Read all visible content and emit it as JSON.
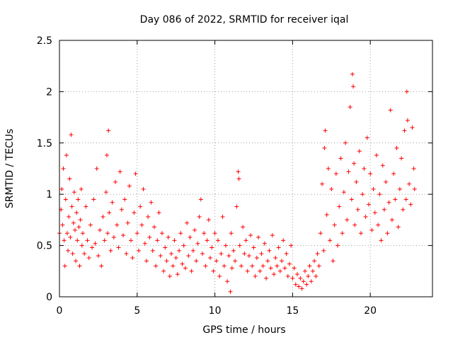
{
  "chart_data": {
    "type": "scatter",
    "title": "Day 086 of 2022, SRMTID for receiver iqal",
    "xlabel": "GPS time / hours",
    "ylabel": "SRMTID / TECUs",
    "xlim": [
      0,
      24
    ],
    "ylim": [
      0,
      2.5
    ],
    "x_ticks": [
      0,
      5,
      10,
      15,
      20
    ],
    "x_tick_labels": [
      "0",
      "5",
      "10",
      "15",
      "20"
    ],
    "y_ticks": [
      0,
      0.5,
      1,
      1.5,
      2,
      2.5
    ],
    "y_tick_labels": [
      "0",
      "0.5",
      "1",
      "1.5",
      "2",
      "2.5"
    ],
    "grid": true,
    "marker": "+",
    "color": "#ff0000",
    "series": [
      {
        "name": "SRMTID",
        "points": [
          [
            0.0,
            0.62
          ],
          [
            0.1,
            0.85
          ],
          [
            0.15,
            1.05
          ],
          [
            0.2,
            0.7
          ],
          [
            0.25,
            1.25
          ],
          [
            0.3,
            0.55
          ],
          [
            0.35,
            0.3
          ],
          [
            0.4,
            0.95
          ],
          [
            0.45,
            1.38
          ],
          [
            0.5,
            0.62
          ],
          [
            0.55,
            0.45
          ],
          [
            0.6,
            0.78
          ],
          [
            0.65,
            1.15
          ],
          [
            0.7,
            0.58
          ],
          [
            0.75,
            1.58
          ],
          [
            0.8,
            0.88
          ],
          [
            0.85,
            0.42
          ],
          [
            0.9,
            0.72
          ],
          [
            0.95,
            1.02
          ],
          [
            1.0,
            0.65
          ],
          [
            1.05,
            0.35
          ],
          [
            1.1,
            0.82
          ],
          [
            1.15,
            0.55
          ],
          [
            1.2,
            0.95
          ],
          [
            1.25,
            0.68
          ],
          [
            1.3,
            0.3
          ],
          [
            1.35,
            0.75
          ],
          [
            1.4,
            1.05
          ],
          [
            1.45,
            0.5
          ],
          [
            1.5,
            0.62
          ],
          [
            1.6,
            0.42
          ],
          [
            1.7,
            0.88
          ],
          [
            1.8,
            0.55
          ],
          [
            1.9,
            0.38
          ],
          [
            2.0,
            0.7
          ],
          [
            2.1,
            0.48
          ],
          [
            2.2,
            0.95
          ],
          [
            2.3,
            0.52
          ],
          [
            2.4,
            1.25
          ],
          [
            2.5,
            0.4
          ],
          [
            2.6,
            0.65
          ],
          [
            2.7,
            0.3
          ],
          [
            2.8,
            0.78
          ],
          [
            2.9,
            0.55
          ],
          [
            3.0,
            1.02
          ],
          [
            3.05,
            1.38
          ],
          [
            3.1,
            0.62
          ],
          [
            3.15,
            1.62
          ],
          [
            3.2,
            0.82
          ],
          [
            3.3,
            0.45
          ],
          [
            3.4,
            0.92
          ],
          [
            3.5,
            0.58
          ],
          [
            3.6,
            1.12
          ],
          [
            3.7,
            0.7
          ],
          [
            3.8,
            0.48
          ],
          [
            3.9,
            1.22
          ],
          [
            4.0,
            0.85
          ],
          [
            4.1,
            0.6
          ],
          [
            4.2,
            0.95
          ],
          [
            4.3,
            0.42
          ],
          [
            4.4,
            0.72
          ],
          [
            4.5,
            1.08
          ],
          [
            4.6,
            0.55
          ],
          [
            4.7,
            0.38
          ],
          [
            4.8,
            0.82
          ],
          [
            4.9,
            1.2
          ],
          [
            5.0,
            0.62
          ],
          [
            5.1,
            0.45
          ],
          [
            5.2,
            0.88
          ],
          [
            5.3,
            0.7
          ],
          [
            5.4,
            1.05
          ],
          [
            5.5,
            0.52
          ],
          [
            5.6,
            0.35
          ],
          [
            5.7,
            0.78
          ],
          [
            5.8,
            0.58
          ],
          [
            5.9,
            0.92
          ],
          [
            6.0,
            0.45
          ],
          [
            6.1,
            0.68
          ],
          [
            6.2,
            0.3
          ],
          [
            6.3,
            0.55
          ],
          [
            6.4,
            0.82
          ],
          [
            6.5,
            0.4
          ],
          [
            6.6,
            0.62
          ],
          [
            6.7,
            0.25
          ],
          [
            6.8,
            0.48
          ],
          [
            6.9,
            0.35
          ],
          [
            7.0,
            0.58
          ],
          [
            7.1,
            0.2
          ],
          [
            7.2,
            0.42
          ],
          [
            7.3,
            0.3
          ],
          [
            7.4,
            0.55
          ],
          [
            7.5,
            0.38
          ],
          [
            7.6,
            0.22
          ],
          [
            7.7,
            0.45
          ],
          [
            7.8,
            0.62
          ],
          [
            7.9,
            0.32
          ],
          [
            8.0,
            0.5
          ],
          [
            8.1,
            0.28
          ],
          [
            8.2,
            0.72
          ],
          [
            8.3,
            0.4
          ],
          [
            8.4,
            0.58
          ],
          [
            8.5,
            0.25
          ],
          [
            8.6,
            0.45
          ],
          [
            8.7,
            0.65
          ],
          [
            8.8,
            0.35
          ],
          [
            8.9,
            0.52
          ],
          [
            9.0,
            0.78
          ],
          [
            9.1,
            0.95
          ],
          [
            9.2,
            0.42
          ],
          [
            9.3,
            0.62
          ],
          [
            9.4,
            0.3
          ],
          [
            9.5,
            0.55
          ],
          [
            9.6,
            0.75
          ],
          [
            9.7,
            0.38
          ],
          [
            9.8,
            0.48
          ],
          [
            9.9,
            0.25
          ],
          [
            10.0,
            0.62
          ],
          [
            10.1,
            0.35
          ],
          [
            10.2,
            0.55
          ],
          [
            10.3,
            0.2
          ],
          [
            10.4,
            0.42
          ],
          [
            10.5,
            0.78
          ],
          [
            10.6,
            0.3
          ],
          [
            10.7,
            0.5
          ],
          [
            10.8,
            0.15
          ],
          [
            10.9,
            0.4
          ],
          [
            11.0,
            0.05
          ],
          [
            11.05,
            0.62
          ],
          [
            11.1,
            0.28
          ],
          [
            11.2,
            0.45
          ],
          [
            11.3,
            0.35
          ],
          [
            11.4,
            0.88
          ],
          [
            11.5,
            1.22
          ],
          [
            11.55,
            1.15
          ],
          [
            11.6,
            0.5
          ],
          [
            11.7,
            0.3
          ],
          [
            11.8,
            0.68
          ],
          [
            11.9,
            0.42
          ],
          [
            12.0,
            0.55
          ],
          [
            12.1,
            0.25
          ],
          [
            12.2,
            0.4
          ],
          [
            12.3,
            0.6
          ],
          [
            12.4,
            0.3
          ],
          [
            12.5,
            0.48
          ],
          [
            12.6,
            0.2
          ],
          [
            12.7,
            0.38
          ],
          [
            12.8,
            0.58
          ],
          [
            12.9,
            0.25
          ],
          [
            13.0,
            0.42
          ],
          [
            13.1,
            0.3
          ],
          [
            13.2,
            0.52
          ],
          [
            13.3,
            0.18
          ],
          [
            13.4,
            0.35
          ],
          [
            13.5,
            0.45
          ],
          [
            13.6,
            0.28
          ],
          [
            13.7,
            0.6
          ],
          [
            13.8,
            0.22
          ],
          [
            13.9,
            0.38
          ],
          [
            14.0,
            0.3
          ],
          [
            14.1,
            0.48
          ],
          [
            14.2,
            0.25
          ],
          [
            14.3,
            0.35
          ],
          [
            14.4,
            0.55
          ],
          [
            14.5,
            0.28
          ],
          [
            14.6,
            0.42
          ],
          [
            14.7,
            0.2
          ],
          [
            14.8,
            0.32
          ],
          [
            14.9,
            0.5
          ],
          [
            15.0,
            0.18
          ],
          [
            15.1,
            0.28
          ],
          [
            15.2,
            0.12
          ],
          [
            15.3,
            0.22
          ],
          [
            15.4,
            0.1
          ],
          [
            15.5,
            0.18
          ],
          [
            15.6,
            0.08
          ],
          [
            15.7,
            0.15
          ],
          [
            15.8,
            0.25
          ],
          [
            15.9,
            0.12
          ],
          [
            16.0,
            0.2
          ],
          [
            16.1,
            0.3
          ],
          [
            16.2,
            0.15
          ],
          [
            16.3,
            0.25
          ],
          [
            16.4,
            0.35
          ],
          [
            16.5,
            0.2
          ],
          [
            16.6,
            0.42
          ],
          [
            16.7,
            0.3
          ],
          [
            16.8,
            0.62
          ],
          [
            16.9,
            1.1
          ],
          [
            17.0,
            0.45
          ],
          [
            17.05,
            1.45
          ],
          [
            17.1,
            1.62
          ],
          [
            17.2,
            0.8
          ],
          [
            17.3,
            1.25
          ],
          [
            17.4,
            0.55
          ],
          [
            17.5,
            1.05
          ],
          [
            17.6,
            0.35
          ],
          [
            17.7,
            0.7
          ],
          [
            17.8,
            1.2
          ],
          [
            17.9,
            0.5
          ],
          [
            18.0,
            0.88
          ],
          [
            18.1,
            1.35
          ],
          [
            18.2,
            0.62
          ],
          [
            18.3,
            1.02
          ],
          [
            18.4,
            1.5
          ],
          [
            18.5,
            0.75
          ],
          [
            18.6,
            1.22
          ],
          [
            18.7,
            1.85
          ],
          [
            18.8,
            0.95
          ],
          [
            18.85,
            2.17
          ],
          [
            18.9,
            2.05
          ],
          [
            18.95,
            1.3
          ],
          [
            19.0,
            0.7
          ],
          [
            19.1,
            1.12
          ],
          [
            19.2,
            0.85
          ],
          [
            19.3,
            1.42
          ],
          [
            19.4,
            0.62
          ],
          [
            19.5,
            1.0
          ],
          [
            19.6,
            1.25
          ],
          [
            19.7,
            0.78
          ],
          [
            19.8,
            1.55
          ],
          [
            19.9,
            0.9
          ],
          [
            20.0,
            1.2
          ],
          [
            20.1,
            0.65
          ],
          [
            20.2,
            1.05
          ],
          [
            20.3,
            0.82
          ],
          [
            20.4,
            1.38
          ],
          [
            20.5,
            0.7
          ],
          [
            20.6,
            1.0
          ],
          [
            20.7,
            0.55
          ],
          [
            20.8,
            1.28
          ],
          [
            20.9,
            0.85
          ],
          [
            21.0,
            1.12
          ],
          [
            21.1,
            0.62
          ],
          [
            21.2,
            0.92
          ],
          [
            21.3,
            1.82
          ],
          [
            21.4,
            0.75
          ],
          [
            21.5,
            1.2
          ],
          [
            21.6,
            0.95
          ],
          [
            21.7,
            1.45
          ],
          [
            21.8,
            0.68
          ],
          [
            21.9,
            1.05
          ],
          [
            22.0,
            1.35
          ],
          [
            22.1,
            0.85
          ],
          [
            22.2,
            1.62
          ],
          [
            22.3,
            0.95
          ],
          [
            22.35,
            2.0
          ],
          [
            22.4,
            1.72
          ],
          [
            22.5,
            1.1
          ],
          [
            22.6,
            0.9
          ],
          [
            22.7,
            1.65
          ],
          [
            22.8,
            1.25
          ],
          [
            22.85,
            1.05
          ]
        ]
      }
    ]
  }
}
